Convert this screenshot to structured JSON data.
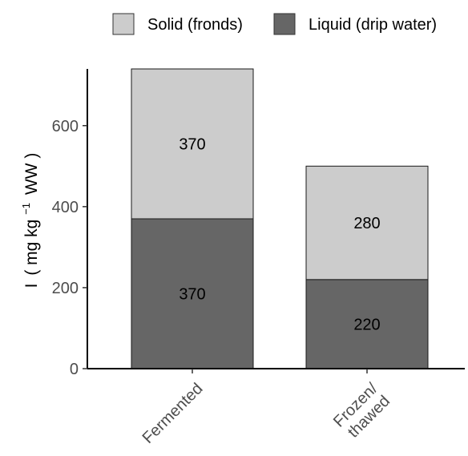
{
  "chart_data": {
    "type": "bar",
    "stacked": true,
    "categories": [
      "Fermented",
      "Frozen/\nthawed"
    ],
    "series": [
      {
        "name": "Liquid (drip water)",
        "values": [
          370,
          220
        ],
        "color": "#666666"
      },
      {
        "name": "Solid (fronds)",
        "values": [
          370,
          280
        ],
        "color": "#cccccc"
      }
    ],
    "ylabel": {
      "main": "I",
      "unit_prefix": "mg kg",
      "unit_exp": "−1",
      "unit_suffix": "WW"
    },
    "ylim": [
      0,
      740
    ],
    "yticks": [
      0,
      200,
      400,
      600
    ],
    "legend_position": "top",
    "legend_order": [
      1,
      0
    ],
    "grid": false
  }
}
